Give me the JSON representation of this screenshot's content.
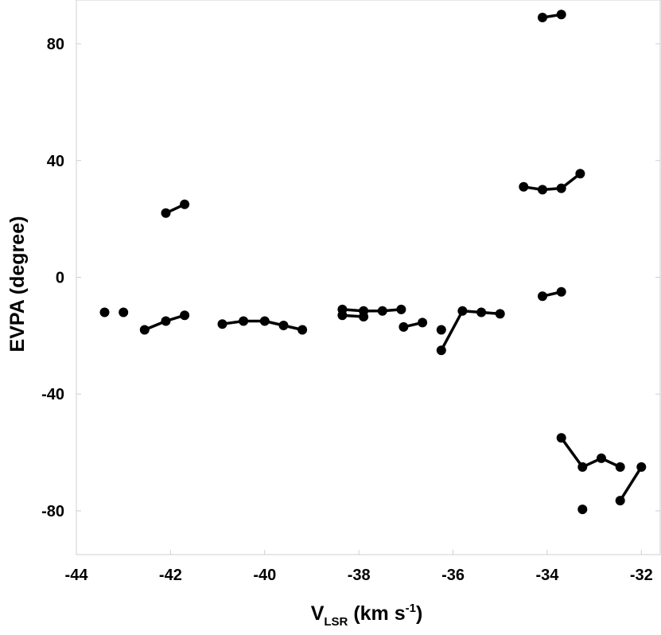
{
  "chart_data": {
    "type": "scatter",
    "title": "",
    "xlabel": {
      "main": "V",
      "sub": "LSR",
      "rest": " (km s",
      "sup": "-1",
      "close": ")"
    },
    "ylabel": "EVPA (degree)",
    "xlim": [
      -44,
      -31.6
    ],
    "ylim": [
      -95,
      95
    ],
    "xticks": [
      -44,
      -42,
      -40,
      -38,
      -36,
      -34,
      -32
    ],
    "yticks": [
      -80,
      -40,
      0,
      40,
      80
    ],
    "grid": false,
    "legend": "none",
    "marker_color": "#000000",
    "series": [
      {
        "x": [
          -43.4,
          -43.0
        ],
        "y": [
          -12,
          -12
        ],
        "connected": false
      },
      {
        "x": [
          -42.1,
          -41.7
        ],
        "y": [
          22,
          25
        ],
        "connected": true
      },
      {
        "x": [
          -42.55,
          -42.1,
          -41.7
        ],
        "y": [
          -18,
          -15,
          -13
        ],
        "connected": true
      },
      {
        "x": [
          -40.9,
          -40.45,
          -40.0,
          -39.6,
          -39.2
        ],
        "y": [
          -16,
          -15,
          -15,
          -16.5,
          -18
        ],
        "connected": true
      },
      {
        "x": [
          -38.35,
          -37.9
        ],
        "y": [
          -13,
          -13.5
        ],
        "connected": true
      },
      {
        "x": [
          -38.35,
          -37.9,
          -37.5,
          -37.1
        ],
        "y": [
          -11,
          -11.5,
          -11.5,
          -11
        ],
        "connected": true
      },
      {
        "x": [
          -37.05,
          -36.65
        ],
        "y": [
          -17,
          -15.5
        ],
        "connected": true
      },
      {
        "x": [
          -36.25
        ],
        "y": [
          -18
        ],
        "connected": false
      },
      {
        "x": [
          -36.25,
          -35.8,
          -35.4,
          -35.0
        ],
        "y": [
          -25,
          -11.5,
          -12,
          -12.5
        ],
        "connected": true
      },
      {
        "x": [
          -34.5,
          -34.1,
          -33.7,
          -33.3
        ],
        "y": [
          31,
          30,
          30.5,
          35.5
        ],
        "connected": true
      },
      {
        "x": [
          -34.1,
          -33.7
        ],
        "y": [
          -6.5,
          -5
        ],
        "connected": true
      },
      {
        "x": [
          -34.1,
          -33.7
        ],
        "y": [
          89,
          90
        ],
        "connected": true
      },
      {
        "x": [
          -33.7,
          -33.25,
          -32.85,
          -32.45
        ],
        "y": [
          -55,
          -65,
          -62,
          -65
        ],
        "connected": true
      },
      {
        "x": [
          -33.25
        ],
        "y": [
          -79.5
        ],
        "connected": false
      },
      {
        "x": [
          -32.45,
          -32.0
        ],
        "y": [
          -76.5,
          -65
        ],
        "connected": true
      }
    ]
  }
}
